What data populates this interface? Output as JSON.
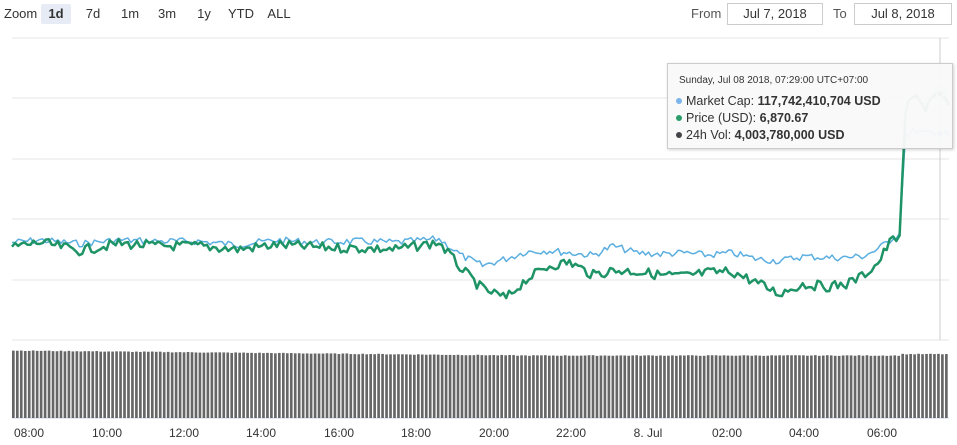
{
  "zoom": {
    "label": "Zoom",
    "buttons": [
      {
        "label": "1d",
        "active": true
      },
      {
        "label": "7d",
        "active": false
      },
      {
        "label": "1m",
        "active": false
      },
      {
        "label": "3m",
        "active": false
      },
      {
        "label": "1y",
        "active": false
      },
      {
        "label": "YTD",
        "active": false
      },
      {
        "label": "ALL",
        "active": false
      }
    ]
  },
  "range": {
    "from_label": "From",
    "from_value": "Jul 7, 2018",
    "to_label": "To",
    "to_value": "Jul 8, 2018"
  },
  "tooltip": {
    "date": "Sunday, Jul 08 2018, 07:29:00 UTC+07:00",
    "rows": [
      {
        "name": "Market Cap:",
        "value": "117,742,410,704 USD",
        "color": "#7cb5ec"
      },
      {
        "name": "Price (USD):",
        "value": "6,870.67",
        "color": "#2a9d6a"
      },
      {
        "name": "24h Vol:",
        "value": "4,003,780,000 USD",
        "color": "#434348"
      }
    ]
  },
  "colors": {
    "market_cap": "#5aaee0",
    "price": "#1e9466",
    "volume": "#666666",
    "grid": "#e6e6e6"
  },
  "chart_data": {
    "type": "line",
    "x_tick_labels": [
      "08:00",
      "10:00",
      "12:00",
      "14:00",
      "16:00",
      "18:00",
      "20:00",
      "22:00",
      "8. Jul",
      "02:00",
      "04:00",
      "06:00"
    ],
    "x_range_hours": [
      7.8,
      31.5
    ],
    "series": [
      {
        "name": "Market Cap",
        "x_hours": [
          7.8,
          8.5,
          9.5,
          10.5,
          11.5,
          12.5,
          13.5,
          14.5,
          15.5,
          16.5,
          17.5,
          18.6,
          19.2,
          19.7,
          20.3,
          20.8,
          21.4,
          21.9,
          22.5,
          23.0,
          23.6,
          24.2,
          24.8,
          25.4,
          26.0,
          26.6,
          27.2,
          27.8,
          28.4,
          28.9,
          29.3,
          29.7,
          30.0,
          30.25,
          30.4,
          30.6,
          30.9,
          31.1,
          31.3,
          31.5
        ],
        "values": [
          1.02,
          1.03,
          1.015,
          1.03,
          1.025,
          1.025,
          1.01,
          1.03,
          1.02,
          1.025,
          1.02,
          1.035,
          0.96,
          0.92,
          0.95,
          0.98,
          0.985,
          0.975,
          0.965,
          1.005,
          0.975,
          0.97,
          0.975,
          0.965,
          0.975,
          0.95,
          0.94,
          0.96,
          0.955,
          0.955,
          0.96,
          0.99,
          1.03,
          1.06,
          1.48,
          1.5,
          1.49,
          1.49,
          1.5,
          1.48
        ]
      },
      {
        "name": "Price (USD)",
        "x_hours": [
          7.8,
          8.5,
          9.5,
          10.5,
          11.5,
          12.5,
          13.5,
          14.5,
          15.5,
          16.5,
          17.5,
          18.6,
          19.2,
          19.7,
          20.3,
          20.8,
          21.4,
          21.9,
          22.5,
          23.0,
          23.6,
          24.2,
          24.8,
          25.4,
          26.0,
          26.6,
          27.2,
          27.8,
          28.4,
          28.9,
          29.3,
          29.7,
          30.0,
          30.25,
          30.4,
          30.6,
          30.9,
          31.1,
          31.3,
          31.5
        ],
        "values": [
          1.0,
          1.02,
          0.985,
          1.015,
          1.005,
          1.005,
          0.99,
          1.01,
          1.0,
          0.995,
          0.99,
          1.02,
          0.9,
          0.82,
          0.78,
          0.86,
          0.92,
          0.935,
          0.88,
          0.9,
          0.895,
          0.88,
          0.875,
          0.89,
          0.895,
          0.85,
          0.8,
          0.84,
          0.83,
          0.84,
          0.875,
          0.93,
          1.02,
          1.05,
          1.58,
          1.65,
          1.6,
          1.66,
          1.64,
          1.61
        ]
      }
    ],
    "volume_bars": {
      "count": 236,
      "level_start": 0.95,
      "level_mid": 0.88,
      "level_end": 0.9
    },
    "grid": true,
    "legend": "none"
  }
}
